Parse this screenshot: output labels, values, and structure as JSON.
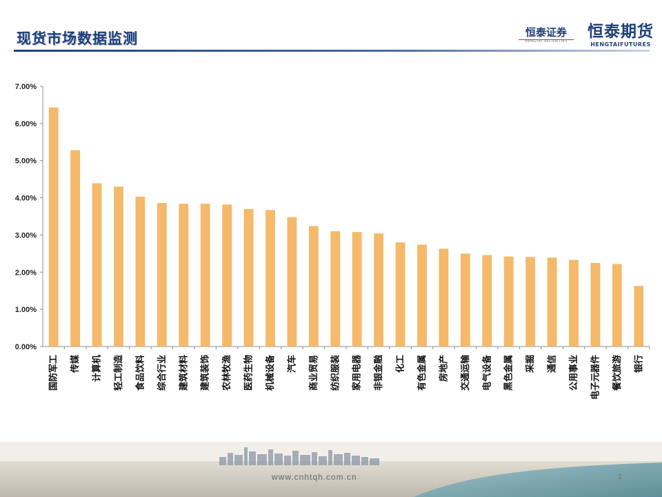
{
  "header": {
    "title": "现货市场数据监测",
    "brand_securities": "恒泰证券",
    "brand_securities_sub": "HENGTAI SECURITIES",
    "brand_futures": "恒泰期货",
    "brand_futures_sub": "HENGTAIFUTURES"
  },
  "footer": {
    "url": "www.cnhtqh.com.cn",
    "page_number": "2"
  },
  "colors": {
    "bar": "#f4b96a",
    "title": "#1f3f7a",
    "axis": "#8c8c8c"
  },
  "chart_data": {
    "type": "bar",
    "title": "",
    "xlabel": "",
    "ylabel": "",
    "ylim": [
      0,
      7
    ],
    "yticks": [
      "0.00%",
      "1.00%",
      "2.00%",
      "3.00%",
      "4.00%",
      "5.00%",
      "6.00%",
      "7.00%"
    ],
    "grid": false,
    "legend": "none",
    "categories": [
      "国防军工",
      "传媒",
      "计算机",
      "轻工制造",
      "食品饮料",
      "综合行业",
      "建筑材料",
      "建筑装饰",
      "农林牧渔",
      "医药生物",
      "机械设备",
      "汽车",
      "商业贸易",
      "纺织服装",
      "家用电器",
      "非银金融",
      "化工",
      "有色金属",
      "房地产",
      "交通运输",
      "电气设备",
      "黑色金属",
      "采掘",
      "通信",
      "公用事业",
      "电子元器件",
      "餐饮旅游",
      "银行"
    ],
    "values": [
      6.43,
      5.28,
      4.39,
      4.3,
      4.03,
      3.86,
      3.84,
      3.84,
      3.82,
      3.7,
      3.67,
      3.48,
      3.24,
      3.1,
      3.08,
      3.04,
      2.8,
      2.74,
      2.63,
      2.5,
      2.46,
      2.42,
      2.41,
      2.39,
      2.33,
      2.25,
      2.22,
      1.63
    ]
  }
}
